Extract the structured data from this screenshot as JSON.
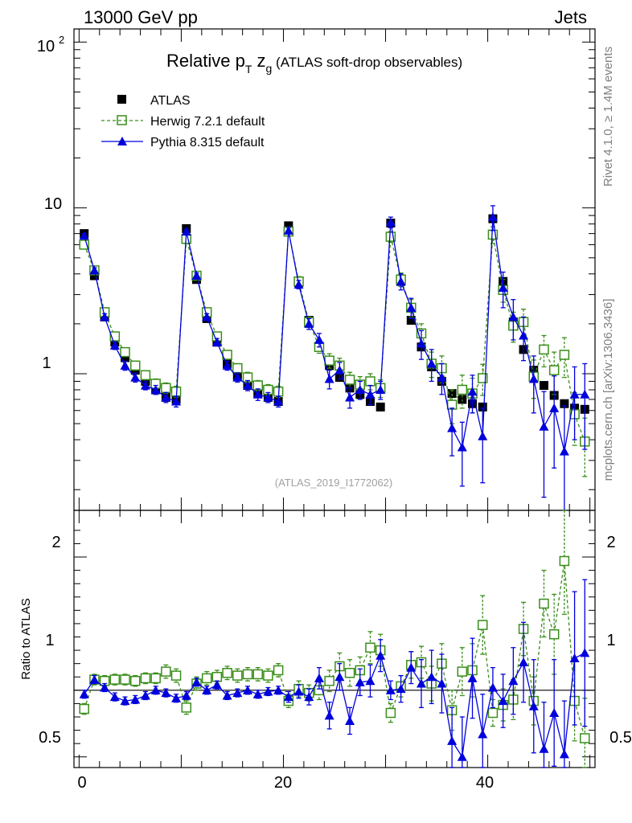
{
  "header": {
    "left": "13000 GeV pp",
    "right": "Jets"
  },
  "side": {
    "rivet": "Rivet 4.1.0, ≥ 1.4M events",
    "mcplots": "mcplots.cern.ch [arXiv:1306.3436]"
  },
  "plot_title": {
    "main": "Relative p",
    "sub_t": "T",
    "z": " z",
    "sub_g": "g",
    "tail": " (ATLAS soft-drop observables)"
  },
  "analysis_id": "(ATLAS_2019_I1772062)",
  "legend": [
    {
      "label": "ATLAS"
    },
    {
      "label": "Herwig 7.2.1 default"
    },
    {
      "label": "Pythia 8.315 default"
    }
  ],
  "upper_ticks": [
    "1",
    "10"
  ],
  "upper_tick_exp": {
    "base": "10",
    "exp": "2"
  },
  "ratio_ticks": [
    "0.5",
    "1",
    "2"
  ],
  "x_ticks": [
    "0",
    "20",
    "40"
  ],
  "ratio_ylabel": "Ratio to ATLAS",
  "colors": {
    "data": "#000000",
    "herwig": "#3a8e1a",
    "pythia": "#0000dd"
  },
  "chart_data": {
    "type": "line",
    "title": "Relative pT zg (ATLAS soft-drop observables)",
    "xlabel": "",
    "ylabel": "",
    "xlim": [
      -0.5,
      50.5
    ],
    "ylim": [
      0.15,
      120
    ],
    "yscale": "log",
    "ratio_ylabel": "Ratio to ATLAS",
    "ratio_ylim": [
      0.42,
      2.35
    ],
    "x": [
      0.5,
      1.5,
      2.5,
      3.5,
      4.5,
      5.5,
      6.5,
      7.5,
      8.5,
      9.5,
      10.5,
      11.5,
      12.5,
      13.5,
      14.5,
      15.5,
      16.5,
      17.5,
      18.5,
      19.5,
      20.5,
      21.5,
      22.5,
      23.5,
      24.5,
      25.5,
      26.5,
      27.5,
      28.5,
      29.5,
      30.5,
      31.5,
      32.5,
      33.5,
      34.5,
      35.5,
      36.5,
      37.5,
      38.5,
      39.5,
      40.5,
      41.5,
      42.5,
      43.5,
      44.5,
      45.5,
      46.5,
      47.5,
      48.5,
      49.5
    ],
    "series": [
      {
        "name": "ATLAS",
        "values": [
          7.0,
          3.9,
          2.2,
          1.55,
          1.25,
          1.05,
          0.9,
          0.8,
          0.72,
          0.7,
          7.5,
          3.7,
          2.15,
          1.55,
          1.15,
          0.97,
          0.85,
          0.76,
          0.72,
          0.68,
          7.8,
          3.55,
          2.1,
          1.45,
          1.12,
          0.95,
          0.82,
          0.75,
          0.68,
          0.63,
          8.1,
          3.6,
          2.1,
          1.45,
          1.1,
          0.9,
          0.76,
          0.7,
          0.66,
          0.63,
          8.6,
          3.6,
          2.05,
          1.4,
          1.05,
          0.85,
          0.74,
          0.66,
          0.62,
          0.61
        ]
      },
      {
        "name": "Herwig 7.2.1 default",
        "values": [
          6.0,
          4.2,
          2.35,
          1.68,
          1.35,
          1.12,
          0.98,
          0.87,
          0.82,
          0.78,
          6.5,
          3.9,
          2.35,
          1.68,
          1.3,
          1.08,
          0.95,
          0.85,
          0.8,
          0.78,
          7.2,
          3.6,
          2.05,
          1.45,
          1.2,
          1.12,
          0.92,
          0.86,
          0.9,
          0.82,
          6.7,
          3.7,
          2.5,
          1.75,
          1.15,
          1.08,
          0.65,
          0.8,
          0.76,
          0.94,
          6.9,
          3.2,
          1.95,
          2.05,
          0.96,
          1.4,
          1.05,
          1.3,
          0.57,
          0.39
        ],
        "err": [
          0.3,
          0.2,
          0.12,
          0.1,
          0.08,
          0.07,
          0.06,
          0.06,
          0.06,
          0.06,
          0.35,
          0.2,
          0.12,
          0.1,
          0.08,
          0.07,
          0.07,
          0.06,
          0.06,
          0.06,
          0.4,
          0.25,
          0.15,
          0.12,
          0.12,
          0.12,
          0.1,
          0.1,
          0.1,
          0.1,
          0.5,
          0.35,
          0.3,
          0.25,
          0.2,
          0.2,
          0.15,
          0.18,
          0.18,
          0.2,
          0.8,
          0.5,
          0.4,
          0.4,
          0.25,
          0.3,
          0.3,
          0.35,
          0.2,
          0.15
        ]
      },
      {
        "name": "Pythia 8.315 default",
        "values": [
          6.8,
          4.2,
          2.2,
          1.48,
          1.12,
          0.95,
          0.85,
          0.8,
          0.72,
          0.68,
          7.2,
          3.9,
          2.2,
          1.55,
          1.12,
          0.95,
          0.85,
          0.75,
          0.72,
          0.68,
          7.3,
          3.45,
          2.0,
          1.6,
          0.93,
          1.05,
          0.72,
          0.8,
          0.75,
          0.8,
          8.2,
          3.6,
          2.5,
          1.52,
          1.15,
          0.95,
          0.47,
          0.36,
          0.78,
          0.42,
          8.8,
          3.3,
          2.2,
          1.7,
          0.93,
          0.48,
          0.62,
          0.34,
          0.75,
          0.75
        ],
        "err": [
          0.2,
          0.15,
          0.1,
          0.08,
          0.07,
          0.06,
          0.05,
          0.05,
          0.05,
          0.05,
          0.25,
          0.15,
          0.1,
          0.08,
          0.07,
          0.06,
          0.06,
          0.06,
          0.05,
          0.05,
          0.3,
          0.2,
          0.15,
          0.15,
          0.12,
          0.12,
          0.1,
          0.1,
          0.1,
          0.1,
          0.6,
          0.4,
          0.35,
          0.3,
          0.25,
          0.2,
          0.15,
          0.15,
          0.2,
          0.2,
          1.5,
          0.8,
          0.6,
          0.5,
          0.35,
          0.3,
          0.35,
          0.3,
          0.35,
          0.4
        ]
      }
    ],
    "ratio_series": [
      {
        "name": "Herwig 7.2.1 default",
        "values": [
          0.86,
          1.08,
          1.07,
          1.08,
          1.08,
          1.07,
          1.09,
          1.09,
          1.14,
          1.11,
          0.87,
          1.05,
          1.09,
          1.1,
          1.13,
          1.11,
          1.12,
          1.12,
          1.11,
          1.15,
          0.92,
          1.01,
          0.98,
          1.0,
          1.07,
          1.18,
          1.13,
          1.15,
          1.32,
          1.3,
          0.83,
          1.03,
          1.19,
          1.21,
          1.05,
          1.2,
          0.85,
          1.14,
          1.15,
          1.49,
          0.83,
          0.89,
          0.93,
          1.46,
          0.92,
          1.65,
          1.42,
          1.97,
          0.92,
          0.64
        ],
        "err": [
          0.04,
          0.04,
          0.04,
          0.04,
          0.04,
          0.04,
          0.04,
          0.04,
          0.05,
          0.05,
          0.05,
          0.05,
          0.05,
          0.05,
          0.05,
          0.05,
          0.05,
          0.05,
          0.05,
          0.05,
          0.05,
          0.06,
          0.06,
          0.07,
          0.08,
          0.1,
          0.1,
          0.1,
          0.12,
          0.12,
          0.07,
          0.08,
          0.1,
          0.12,
          0.13,
          0.15,
          0.15,
          0.18,
          0.2,
          0.22,
          0.1,
          0.12,
          0.15,
          0.2,
          0.18,
          0.25,
          0.3,
          0.4,
          0.3,
          0.3
        ]
      },
      {
        "name": "Pythia 8.315 default",
        "values": [
          0.97,
          1.08,
          1.02,
          0.95,
          0.92,
          0.93,
          0.96,
          1.0,
          0.98,
          0.94,
          0.96,
          1.06,
          1.0,
          1.04,
          0.96,
          0.98,
          1.0,
          0.97,
          0.99,
          1.0,
          0.95,
          0.99,
          0.95,
          1.09,
          0.81,
          1.1,
          0.77,
          1.06,
          1.07,
          1.26,
          1.0,
          1.01,
          1.17,
          1.05,
          1.1,
          1.05,
          0.62,
          0.5,
          1.09,
          0.67,
          1.02,
          0.92,
          1.07,
          1.21,
          0.88,
          0.56,
          0.83,
          0.52,
          1.24,
          1.28
        ],
        "err": [
          0.03,
          0.03,
          0.03,
          0.03,
          0.03,
          0.03,
          0.03,
          0.03,
          0.03,
          0.03,
          0.03,
          0.03,
          0.03,
          0.03,
          0.03,
          0.03,
          0.03,
          0.03,
          0.03,
          0.03,
          0.04,
          0.05,
          0.06,
          0.08,
          0.1,
          0.1,
          0.1,
          0.1,
          0.12,
          0.12,
          0.07,
          0.1,
          0.12,
          0.18,
          0.2,
          0.22,
          0.25,
          0.3,
          0.3,
          0.3,
          0.15,
          0.2,
          0.25,
          0.3,
          0.35,
          0.35,
          0.4,
          0.4,
          0.5,
          0.55
        ]
      }
    ]
  }
}
